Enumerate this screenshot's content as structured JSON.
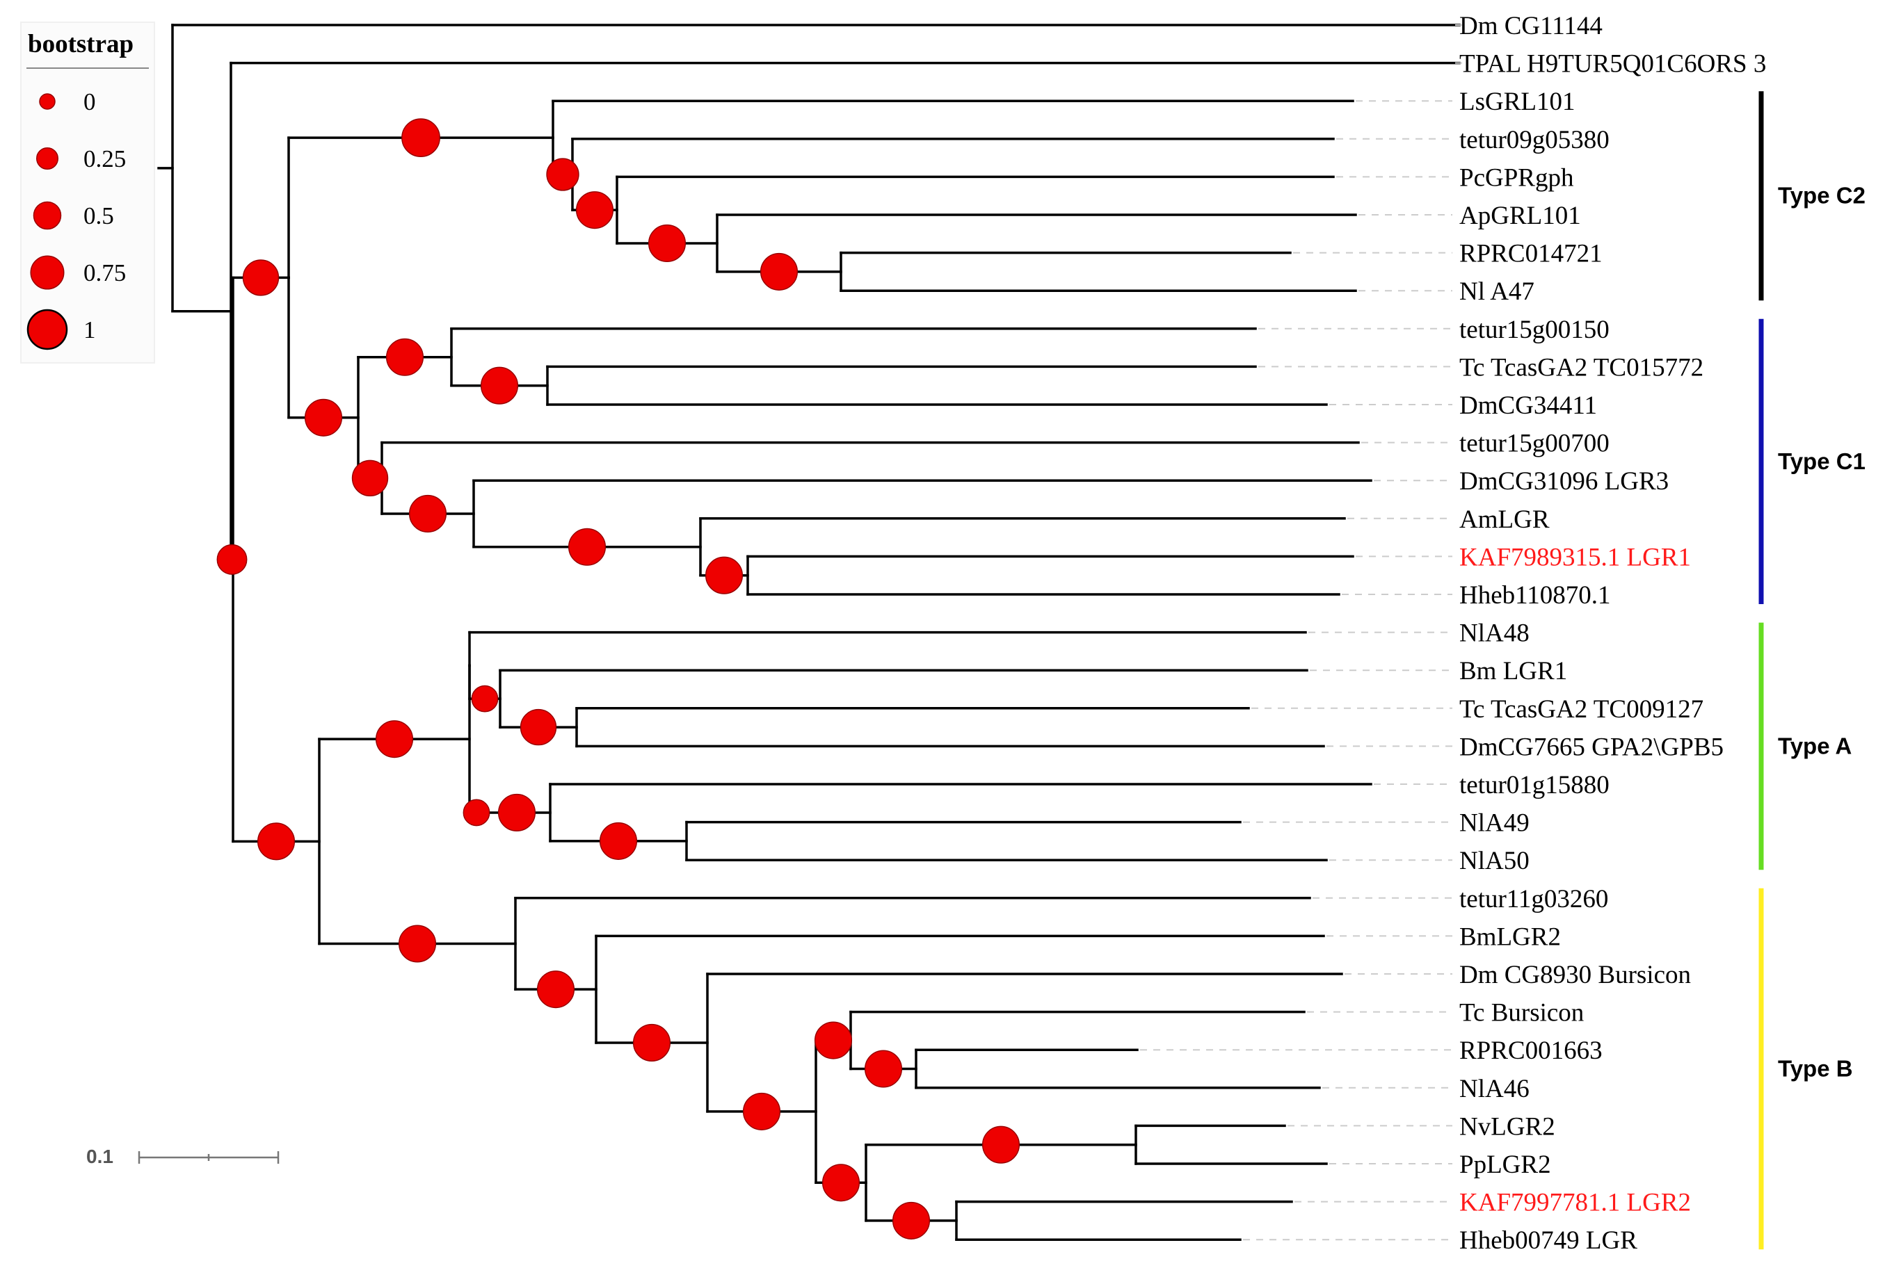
{
  "legend": {
    "title": "bootstrap",
    "items": [
      {
        "label": "0",
        "value": 0
      },
      {
        "label": "0.25",
        "value": 0.25
      },
      {
        "label": "0.5",
        "value": 0.5
      },
      {
        "label": "0.75",
        "value": 0.75
      },
      {
        "label": "1",
        "value": 1
      }
    ]
  },
  "scale_bar": {
    "label": "0.1",
    "value": 0.1
  },
  "node_color": "#ee0000",
  "highlight_color": "#ff1a1a",
  "tree": {
    "name": "root",
    "len": 0.01,
    "children": [
      {
        "leaf": "Dm CG11144",
        "len": 0.925
      },
      {
        "name": "n1",
        "len": 0.042,
        "children": [
          {
            "leaf": "TPAL H9TUR5Q01C6ORS 3",
            "len": 0.883
          },
          {
            "name": "n2",
            "len": 0.0015,
            "bootstrap": 0.6,
            "children": [
              {
                "name": "n3",
                "len": 0.04,
                "bootstrap": 0.85,
                "children": [
                  {
                    "name": "n4",
                    "len": 0.0,
                    "children": [
                      {
                        "name": "n5",
                        "len": 0.19,
                        "bootstrap": 0.95,
                        "children": [
                          {
                            "leaf": "LsGRL101",
                            "len": 0.575
                          },
                          {
                            "name": "n6",
                            "len": 0.014,
                            "bootstrap": 0.7,
                            "children": [
                              {
                                "leaf": "tetur09g05380",
                                "len": 0.547
                              },
                              {
                                "name": "n7",
                                "len": 0.032,
                                "bootstrap": 0.9,
                                "children": [
                                  {
                                    "leaf": "PcGPRgph",
                                    "len": 0.515
                                  },
                                  {
                                    "name": "n8",
                                    "len": 0.072,
                                    "bootstrap": 0.9,
                                    "children": [
                                      {
                                        "leaf": "ApGRL101",
                                        "len": 0.459
                                      },
                                      {
                                        "name": "n9",
                                        "len": 0.089,
                                        "bootstrap": 0.9,
                                        "children": [
                                          {
                                            "leaf": "RPRC014721",
                                            "len": 0.323
                                          },
                                          {
                                            "leaf": "Nl A47",
                                            "len": 0.37
                                          }
                                        ]
                                      }
                                    ]
                                  }
                                ]
                              }
                            ]
                          }
                        ]
                      },
                      {
                        "name": "n10",
                        "len": 0.05,
                        "bootstrap": 0.9,
                        "children": [
                          {
                            "name": "n11",
                            "len": 0.067,
                            "bootstrap": 0.9,
                            "children": [
                              {
                                "leaf": "tetur15g00150",
                                "len": 0.578
                              },
                              {
                                "name": "n12",
                                "len": 0.069,
                                "bootstrap": 0.9,
                                "children": [
                                  {
                                    "leaf": "Tc TcasGA2 TC015772",
                                    "len": 0.509
                                  },
                                  {
                                    "leaf": "DmCG34411",
                                    "len": 0.56
                                  }
                                ]
                              }
                            ]
                          },
                          {
                            "name": "n13",
                            "len": 0.017,
                            "bootstrap": 0.85,
                            "children": [
                              {
                                "leaf": "tetur15g00700",
                                "len": 0.702
                              },
                              {
                                "name": "n14",
                                "len": 0.066,
                                "bootstrap": 0.9,
                                "children": [
                                  {
                                    "leaf": "DmCG31096 LGR3",
                                    "len": 0.645
                                  },
                                  {
                                    "name": "n15",
                                    "len": 0.163,
                                    "bootstrap": 0.9,
                                    "children": [
                                      {
                                        "leaf": "AmLGR",
                                        "len": 0.463
                                      },
                                      {
                                        "name": "n16",
                                        "len": 0.034,
                                        "bootstrap": 0.9,
                                        "children": [
                                          {
                                            "leaf": "KAF7989315.1 LGR1",
                                            "len": 0.435,
                                            "highlight": true
                                          },
                                          {
                                            "leaf": "Hheb110870.1",
                                            "len": 0.425
                                          }
                                        ]
                                      }
                                    ]
                                  }
                                ]
                              }
                            ]
                          }
                        ]
                      }
                    ]
                  }
                ]
              },
              {
                "name": "n17",
                "len": 0.062,
                "bootstrap": 0.9,
                "children": [
                  {
                    "name": "n18",
                    "len": 0.108,
                    "bootstrap": 0.9,
                    "children": [
                      {
                        "name": "n19",
                        "len": 0.0,
                        "children": [
                          {
                            "leaf": "NlA48",
                            "len": 0.601
                          },
                          {
                            "name": "n20",
                            "len": 0.022,
                            "bootstrap": 0.45,
                            "children": [
                              {
                                "leaf": "Bm LGR1",
                                "len": 0.58
                              },
                              {
                                "name": "n21",
                                "len": 0.055,
                                "bootstrap": 0.85,
                                "children": [
                                  {
                                    "leaf": "Tc TcasGA2 TC009127",
                                    "len": 0.483
                                  },
                                  {
                                    "leaf": "DmCG7665 GPA2\\GPB5",
                                    "len": 0.537
                                  }
                                ]
                              }
                            ]
                          }
                        ]
                      },
                      {
                        "name": "n22",
                        "len": 0.01,
                        "bootstrap": 0.45,
                        "children": [
                          {
                            "name": "n23",
                            "len": 0.048,
                            "bootstrap": 0.9,
                            "children": [
                              {
                                "leaf": "tetur01g15880",
                                "len": 0.59
                              },
                              {
                                "name": "n24",
                                "len": 0.098,
                                "bootstrap": 0.9,
                                "children": [
                                  {
                                    "leaf": "NlA49",
                                    "len": 0.398
                                  },
                                  {
                                    "leaf": "NlA50",
                                    "len": 0.46
                                  }
                                ]
                              }
                            ]
                          }
                        ]
                      }
                    ]
                  },
                  {
                    "name": "n25",
                    "len": 0.141,
                    "bootstrap": 0.9,
                    "children": [
                      {
                        "leaf": "tetur11g03260",
                        "len": 0.571
                      },
                      {
                        "name": "n26",
                        "len": 0.058,
                        "bootstrap": 0.9,
                        "children": [
                          {
                            "leaf": "BmLGR2",
                            "len": 0.523
                          },
                          {
                            "name": "n27",
                            "len": 0.08,
                            "bootstrap": 0.9,
                            "children": [
                              {
                                "leaf": "Dm CG8930 Bursicon",
                                "len": 0.456
                              },
                              {
                                "name": "n28",
                                "len": 0.078,
                                "bootstrap": 0.9,
                                "children": [
                                  {
                                    "name": "n29",
                                    "len": 0.025,
                                    "bootstrap": 0.9,
                                    "children": [
                                      {
                                        "leaf": "Tc Bursicon",
                                        "len": 0.326
                                      },
                                      {
                                        "name": "n30",
                                        "len": 0.047,
                                        "bootstrap": 0.9,
                                        "children": [
                                          {
                                            "leaf": "RPRC001663",
                                            "len": 0.159
                                          },
                                          {
                                            "leaf": "NlA46",
                                            "len": 0.29
                                          }
                                        ]
                                      }
                                    ]
                                  },
                                  {
                                    "name": "n31",
                                    "len": 0.036,
                                    "bootstrap": 0.9,
                                    "children": [
                                      {
                                        "name": "n32",
                                        "len": 0.194,
                                        "bootstrap": 0.9,
                                        "children": [
                                          {
                                            "leaf": "NvLGR2",
                                            "len": 0.107
                                          },
                                          {
                                            "leaf": "PpLGR2",
                                            "len": 0.137
                                          }
                                        ]
                                      },
                                      {
                                        "name": "n33",
                                        "len": 0.065,
                                        "bootstrap": 0.9,
                                        "children": [
                                          {
                                            "leaf": "KAF7997781.1 LGR2",
                                            "len": 0.241,
                                            "highlight": true
                                          },
                                          {
                                            "leaf": "Hheb00749 LGR",
                                            "len": 0.204
                                          }
                                        ]
                                      }
                                    ]
                                  }
                                ]
                              }
                            ]
                          }
                        ]
                      }
                    ]
                  }
                ]
              }
            ]
          }
        ]
      }
    ]
  },
  "clades": [
    {
      "label": "Type C2",
      "first": "LsGRL101",
      "last": "Nl A47",
      "color": "#000000"
    },
    {
      "label": "Type C1",
      "first": "tetur15g00150",
      "last": "Hheb110870.1",
      "color": "#1010b0"
    },
    {
      "label": "Type A",
      "first": "NlA48",
      "last": "NlA50",
      "color": "#66dd22"
    },
    {
      "label": "Type B",
      "first": "tetur11g03260",
      "last": "Hheb00749 LGR",
      "color": "#ffee22"
    }
  ]
}
